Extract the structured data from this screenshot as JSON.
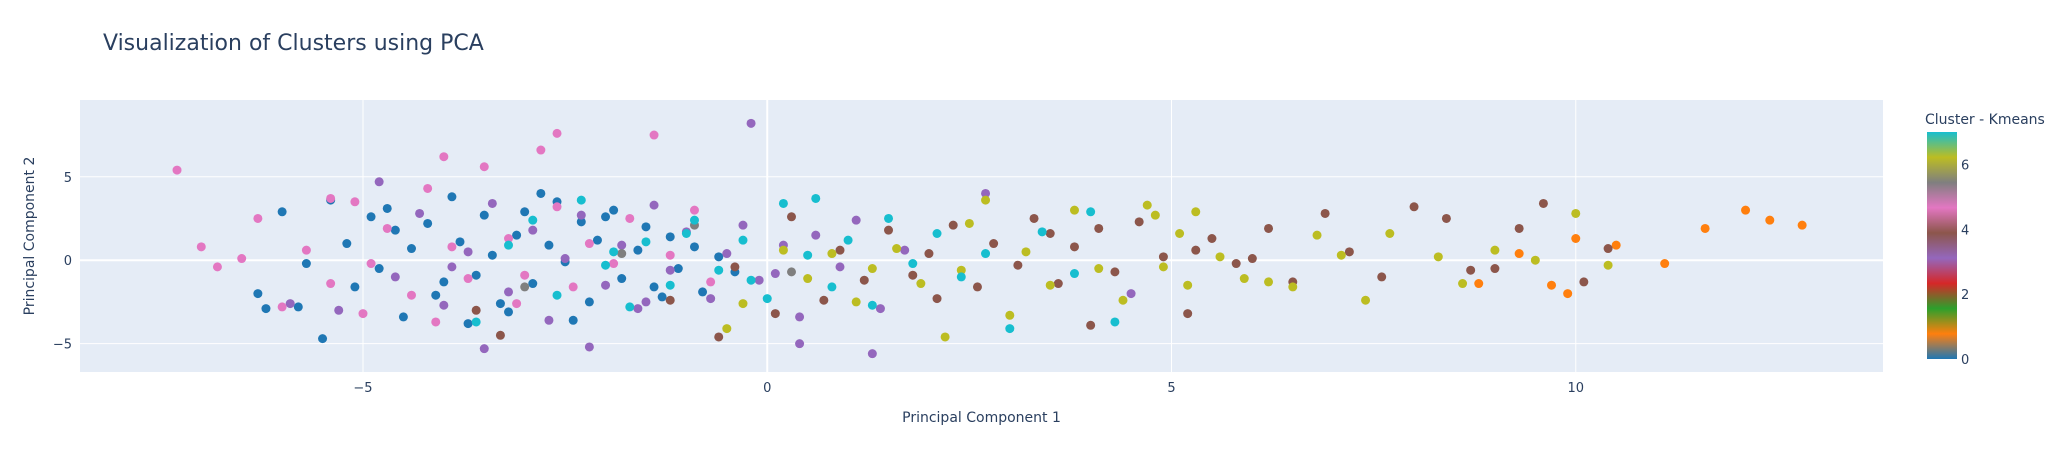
{
  "chart_data": {
    "type": "scatter",
    "title": "Visualization of Clusters using PCA",
    "xlabel": "Principal Component 1",
    "ylabel": "Principal Component 2",
    "xlim": [
      -8.5,
      13.8
    ],
    "ylim": [
      -6.7,
      9.6
    ],
    "x_ticks": [
      -5,
      0,
      5,
      10
    ],
    "y_ticks": [
      -5,
      0,
      5
    ],
    "grid": true,
    "colorbar": {
      "title": "Cluster - Kmeans",
      "range": [
        0,
        7
      ],
      "ticks": [
        0,
        2,
        4,
        6
      ],
      "colorscale": [
        "#1f77b4",
        "#ff7f0e",
        "#2ca02c",
        "#d62728",
        "#9467bd",
        "#8c564b",
        "#e377c2",
        "#7f7f7f",
        "#bcbd22",
        "#17becf"
      ]
    },
    "clusters": [
      {
        "cluster": 0,
        "color": "#1f77b4",
        "points": [
          [
            -6.3,
            -2.0
          ],
          [
            -6.2,
            -2.9
          ],
          [
            -6.0,
            2.9
          ],
          [
            -5.7,
            -0.2
          ],
          [
            -5.5,
            -4.7
          ],
          [
            -5.4,
            3.6
          ],
          [
            -5.2,
            1.0
          ],
          [
            -5.1,
            -1.6
          ],
          [
            -4.9,
            2.6
          ],
          [
            -4.8,
            -0.5
          ],
          [
            -4.6,
            1.8
          ],
          [
            -4.5,
            -3.4
          ],
          [
            -4.4,
            0.7
          ],
          [
            -4.2,
            2.2
          ],
          [
            -4.1,
            -2.1
          ],
          [
            -3.9,
            3.8
          ],
          [
            -3.8,
            1.1
          ],
          [
            -3.6,
            -0.9
          ],
          [
            -3.5,
            2.7
          ],
          [
            -3.4,
            0.3
          ],
          [
            -3.2,
            -3.1
          ],
          [
            -3.1,
            1.5
          ],
          [
            -3.0,
            2.9
          ],
          [
            -2.9,
            -1.4
          ],
          [
            -2.7,
            0.9
          ],
          [
            -2.6,
            3.5
          ],
          [
            -2.5,
            -0.1
          ],
          [
            -2.3,
            2.3
          ],
          [
            -2.2,
            -2.5
          ],
          [
            -2.1,
            1.2
          ],
          [
            -1.9,
            3.0
          ],
          [
            -1.8,
            -1.1
          ],
          [
            -1.6,
            0.6
          ],
          [
            -1.5,
            2.0
          ],
          [
            -1.3,
            -2.2
          ],
          [
            -1.2,
            1.4
          ],
          [
            -1.1,
            -0.5
          ],
          [
            -0.9,
            0.8
          ],
          [
            -0.8,
            -1.9
          ],
          [
            -0.6,
            0.2
          ],
          [
            -4.0,
            -1.3
          ],
          [
            -3.3,
            -2.6
          ],
          [
            -2.8,
            4.0
          ],
          [
            -2.4,
            -3.6
          ],
          [
            -5.8,
            -2.8
          ],
          [
            -4.7,
            3.1
          ],
          [
            -3.7,
            -3.8
          ],
          [
            -2.0,
            2.6
          ],
          [
            -1.4,
            -1.6
          ],
          [
            -0.4,
            -0.7
          ]
        ]
      },
      {
        "cluster": 1,
        "color": "#ff7f0e",
        "points": [
          [
            8.8,
            -1.4
          ],
          [
            9.3,
            0.4
          ],
          [
            9.9,
            -2.0
          ],
          [
            10.5,
            0.9
          ],
          [
            11.1,
            -0.2
          ],
          [
            11.6,
            1.9
          ],
          [
            12.1,
            3.0
          ],
          [
            12.4,
            2.4
          ],
          [
            12.8,
            2.1
          ],
          [
            10.0,
            1.3
          ],
          [
            9.7,
            -1.5
          ]
        ]
      },
      {
        "cluster": 4,
        "color": "#9467bd",
        "points": [
          [
            -5.9,
            -2.6
          ],
          [
            -5.3,
            -3.0
          ],
          [
            -4.8,
            4.7
          ],
          [
            -4.6,
            -1.0
          ],
          [
            -4.3,
            2.8
          ],
          [
            -4.0,
            -2.7
          ],
          [
            -3.7,
            0.5
          ],
          [
            -3.4,
            3.4
          ],
          [
            -3.2,
            -1.9
          ],
          [
            -2.9,
            1.8
          ],
          [
            -2.7,
            -3.6
          ],
          [
            -2.5,
            0.1
          ],
          [
            -2.3,
            2.7
          ],
          [
            -2.0,
            -1.5
          ],
          [
            -1.8,
            0.9
          ],
          [
            -1.6,
            -2.9
          ],
          [
            -1.4,
            3.3
          ],
          [
            -1.2,
            -0.6
          ],
          [
            -1.0,
            1.7
          ],
          [
            -0.7,
            -2.3
          ],
          [
            -0.5,
            0.4
          ],
          [
            -0.3,
            2.1
          ],
          [
            -0.1,
            -1.2
          ],
          [
            0.2,
            0.9
          ],
          [
            0.4,
            -3.4
          ],
          [
            0.6,
            1.5
          ],
          [
            0.9,
            -0.4
          ],
          [
            1.1,
            2.4
          ],
          [
            1.4,
            -2.9
          ],
          [
            1.7,
            0.6
          ],
          [
            -0.2,
            8.2
          ],
          [
            1.3,
            -5.6
          ],
          [
            0.4,
            -5.0
          ],
          [
            2.7,
            4.0
          ],
          [
            -3.5,
            -5.3
          ],
          [
            -2.2,
            -5.2
          ],
          [
            4.5,
            -2.0
          ],
          [
            -1.5,
            -2.5
          ],
          [
            0.1,
            -0.8
          ],
          [
            -3.9,
            -0.4
          ]
        ]
      },
      {
        "cluster": 5,
        "color": "#8c564b",
        "points": [
          [
            -3.3,
            -4.5
          ],
          [
            -3.6,
            -3.0
          ],
          [
            -1.2,
            -2.4
          ],
          [
            -0.4,
            -0.4
          ],
          [
            0.1,
            -3.2
          ],
          [
            0.3,
            2.6
          ],
          [
            0.7,
            -2.4
          ],
          [
            0.9,
            0.6
          ],
          [
            1.2,
            -1.2
          ],
          [
            1.5,
            1.8
          ],
          [
            1.8,
            -0.9
          ],
          [
            2.0,
            0.4
          ],
          [
            2.3,
            2.1
          ],
          [
            2.6,
            -1.6
          ],
          [
            2.8,
            1.0
          ],
          [
            3.1,
            -0.3
          ],
          [
            3.3,
            2.5
          ],
          [
            3.6,
            -1.4
          ],
          [
            3.8,
            0.8
          ],
          [
            4.1,
            1.9
          ],
          [
            4.3,
            -0.7
          ],
          [
            4.6,
            2.3
          ],
          [
            4.9,
            0.2
          ],
          [
            5.2,
            -3.2
          ],
          [
            5.5,
            1.3
          ],
          [
            5.8,
            -0.2
          ],
          [
            6.2,
            1.9
          ],
          [
            6.5,
            -1.3
          ],
          [
            6.9,
            2.8
          ],
          [
            7.2,
            0.5
          ],
          [
            7.6,
            -1.0
          ],
          [
            8.0,
            3.2
          ],
          [
            8.4,
            2.5
          ],
          [
            9.0,
            -0.5
          ],
          [
            9.3,
            1.9
          ],
          [
            9.6,
            3.4
          ],
          [
            10.1,
            -1.3
          ],
          [
            10.4,
            0.7
          ],
          [
            3.5,
            1.6
          ],
          [
            2.1,
            -2.3
          ],
          [
            4.0,
            -3.9
          ],
          [
            6.0,
            0.1
          ],
          [
            8.7,
            -0.6
          ],
          [
            5.3,
            0.6
          ],
          [
            -0.6,
            -4.6
          ]
        ]
      },
      {
        "cluster": 6,
        "color": "#e377c2",
        "points": [
          [
            -7.3,
            5.4
          ],
          [
            -7.0,
            0.8
          ],
          [
            -6.8,
            -0.4
          ],
          [
            -6.5,
            0.1
          ],
          [
            -6.3,
            2.5
          ],
          [
            -6.0,
            -2.8
          ],
          [
            -5.7,
            0.6
          ],
          [
            -5.4,
            -1.4
          ],
          [
            -5.1,
            3.5
          ],
          [
            -4.9,
            -0.2
          ],
          [
            -4.7,
            1.9
          ],
          [
            -4.4,
            -2.1
          ],
          [
            -4.2,
            4.3
          ],
          [
            -3.9,
            0.8
          ],
          [
            -3.7,
            -1.1
          ],
          [
            -3.5,
            5.6
          ],
          [
            -3.2,
            1.3
          ],
          [
            -3.0,
            -0.9
          ],
          [
            -2.8,
            6.6
          ],
          [
            -2.6,
            3.2
          ],
          [
            -2.4,
            -1.6
          ],
          [
            -2.2,
            1.0
          ],
          [
            -1.9,
            -0.2
          ],
          [
            -1.7,
            2.5
          ],
          [
            -1.4,
            7.5
          ],
          [
            -1.2,
            0.3
          ],
          [
            -0.9,
            3.0
          ],
          [
            -0.7,
            -1.3
          ],
          [
            -5.4,
            3.7
          ],
          [
            -4.0,
            6.2
          ],
          [
            -2.6,
            7.6
          ],
          [
            -3.1,
            -2.6
          ],
          [
            -5.0,
            -3.2
          ],
          [
            -4.1,
            -3.7
          ]
        ]
      },
      {
        "cluster": 7,
        "color": "#7f7f7f",
        "points": [
          [
            -3.0,
            -1.6
          ],
          [
            -1.8,
            0.4
          ],
          [
            -0.9,
            2.1
          ],
          [
            0.3,
            -0.7
          ]
        ]
      },
      {
        "cluster": 8,
        "color": "#bcbd22",
        "points": [
          [
            -0.5,
            -4.1
          ],
          [
            -0.3,
            -2.6
          ],
          [
            0.2,
            0.6
          ],
          [
            0.5,
            -1.1
          ],
          [
            0.8,
            0.4
          ],
          [
            1.1,
            -2.5
          ],
          [
            1.3,
            -0.5
          ],
          [
            1.6,
            0.7
          ],
          [
            1.9,
            -1.4
          ],
          [
            2.2,
            -4.6
          ],
          [
            2.4,
            -0.6
          ],
          [
            2.7,
            3.6
          ],
          [
            3.0,
            -3.3
          ],
          [
            3.2,
            0.5
          ],
          [
            3.5,
            -1.5
          ],
          [
            3.8,
            3.0
          ],
          [
            4.1,
            -0.5
          ],
          [
            4.4,
            -2.4
          ],
          [
            4.7,
            3.3
          ],
          [
            4.9,
            -0.4
          ],
          [
            5.1,
            1.6
          ],
          [
            5.3,
            2.9
          ],
          [
            5.6,
            0.2
          ],
          [
            5.9,
            -1.1
          ],
          [
            6.2,
            -1.3
          ],
          [
            6.5,
            -1.6
          ],
          [
            6.8,
            1.5
          ],
          [
            7.1,
            0.3
          ],
          [
            7.4,
            -2.4
          ],
          [
            7.7,
            1.6
          ],
          [
            8.3,
            0.2
          ],
          [
            8.6,
            -1.4
          ],
          [
            9.0,
            0.6
          ],
          [
            9.5,
            0.0
          ],
          [
            10.0,
            2.8
          ],
          [
            10.4,
            -0.3
          ],
          [
            4.8,
            2.7
          ],
          [
            5.2,
            -1.5
          ],
          [
            2.5,
            2.2
          ]
        ]
      },
      {
        "cluster": 9,
        "color": "#17becf",
        "points": [
          [
            -3.6,
            -3.7
          ],
          [
            -3.2,
            0.9
          ],
          [
            -2.9,
            2.4
          ],
          [
            -2.6,
            -2.1
          ],
          [
            -2.3,
            3.6
          ],
          [
            -2.0,
            -0.3
          ],
          [
            -1.7,
            -2.8
          ],
          [
            -1.5,
            1.1
          ],
          [
            -1.2,
            -1.5
          ],
          [
            -0.9,
            2.4
          ],
          [
            -0.6,
            -0.6
          ],
          [
            -0.3,
            1.2
          ],
          [
            0.0,
            -2.3
          ],
          [
            0.2,
            3.4
          ],
          [
            0.5,
            0.3
          ],
          [
            0.8,
            -1.6
          ],
          [
            1.0,
            1.2
          ],
          [
            1.3,
            -2.7
          ],
          [
            1.5,
            2.5
          ],
          [
            1.8,
            -0.2
          ],
          [
            2.1,
            1.6
          ],
          [
            2.4,
            -1.0
          ],
          [
            2.7,
            0.4
          ],
          [
            3.0,
            -4.1
          ],
          [
            3.4,
            1.7
          ],
          [
            3.8,
            -0.8
          ],
          [
            4.0,
            2.9
          ],
          [
            4.3,
            -3.7
          ],
          [
            -1.9,
            0.5
          ],
          [
            0.6,
            3.7
          ],
          [
            -0.2,
            -1.2
          ],
          [
            -1.0,
            1.6
          ]
        ]
      }
    ]
  }
}
